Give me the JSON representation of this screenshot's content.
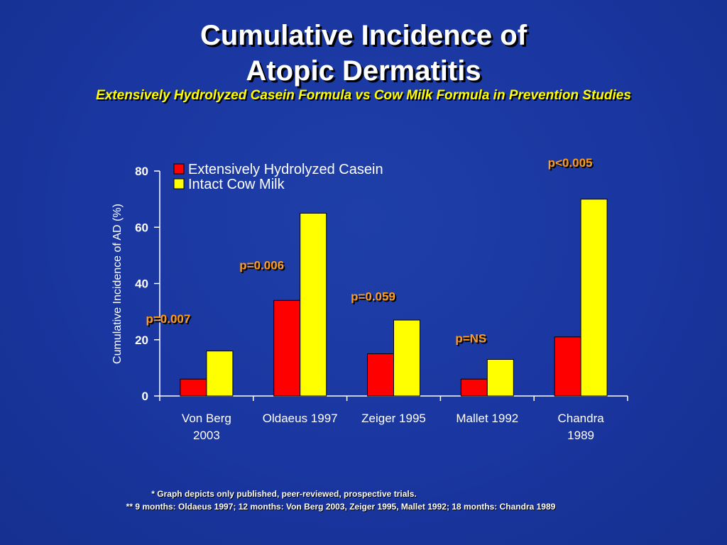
{
  "header": {
    "title_line1": "Cumulative Incidence of",
    "title_line2": "Atopic Dermatitis",
    "subtitle": "Extensively Hydrolyzed Casein Formula vs Cow Milk Formula in Prevention Studies"
  },
  "colors": {
    "background": "#1a36a0",
    "series_ehc": "#ff0000",
    "series_cow": "#ffff00",
    "pvalue": "#ff9c1a"
  },
  "chart_data": {
    "type": "bar",
    "title": "",
    "xlabel": "",
    "ylabel": "Cumulative Incidence of AD (%)",
    "ylim": [
      0,
      80
    ],
    "yticks": [
      0,
      20,
      40,
      60,
      80
    ],
    "grid": false,
    "legend_position": "top-left",
    "categories": [
      [
        "Von Berg",
        "2003"
      ],
      [
        "Oldaeus 1997"
      ],
      [
        "Zeiger 1995"
      ],
      [
        "Mallet 1992"
      ],
      [
        "Chandra",
        "1989"
      ]
    ],
    "series": [
      {
        "name": "Extensively Hydrolyzed Casein",
        "color": "#ff0000",
        "values": [
          6,
          34,
          15,
          6,
          21
        ]
      },
      {
        "name": "Intact Cow Milk",
        "color": "#ffff00",
        "values": [
          16,
          65,
          27,
          13,
          70
        ]
      }
    ],
    "annotations": [
      "p=0.007",
      "p=0.006",
      "p=0.059",
      "p=NS",
      "p<0.005"
    ]
  },
  "footnotes": {
    "line1": "* Graph depicts only published, peer-reviewed, prospective trials.",
    "line2": "** 9 months: Oldaeus 1997; 12 months: Von Berg 2003, Zeiger 1995,  Mallet 1992; 18 months: Chandra 1989"
  }
}
